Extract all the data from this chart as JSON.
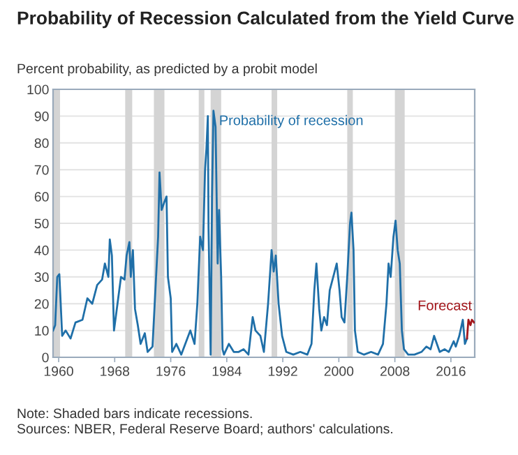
{
  "chart_data": {
    "type": "line",
    "title": "Probability of Recession Calculated from the Yield Curve",
    "subtitle": "Percent probability, as predicted by a probit model",
    "annotations": [
      "Note: Shaded bars indicate recessions.",
      "Sources: NBER, Federal Reserve Board; authors' calculations."
    ],
    "xlim": [
      1959.2,
      2019.4
    ],
    "xticks": [
      1960,
      1968,
      1976,
      1984,
      1992,
      2000,
      2008,
      2016
    ],
    "ylim": [
      0,
      100
    ],
    "yticks": [
      0,
      10,
      20,
      30,
      40,
      50,
      60,
      70,
      80,
      90,
      100
    ],
    "grid": "y",
    "legend": false,
    "bands": [
      {
        "axis": "x",
        "from": 1959.2,
        "to": 1960.2,
        "color": "#d4d4d4"
      },
      {
        "axis": "x",
        "from": 1969.5,
        "to": 1970.5,
        "color": "#d4d4d4"
      },
      {
        "axis": "x",
        "from": 1973.6,
        "to": 1975.1,
        "color": "#d4d4d4"
      },
      {
        "axis": "x",
        "from": 1980.0,
        "to": 1980.8,
        "color": "#d4d4d4"
      },
      {
        "axis": "x",
        "from": 1981.7,
        "to": 1983.2,
        "color": "#d4d4d4"
      },
      {
        "axis": "x",
        "from": 1990.4,
        "to": 1991.2,
        "color": "#d4d4d4"
      },
      {
        "axis": "x",
        "from": 2001.2,
        "to": 2002.0,
        "color": "#d4d4d4"
      },
      {
        "axis": "x",
        "from": 2008.0,
        "to": 2009.4,
        "color": "#d4d4d4"
      }
    ],
    "series": [
      {
        "name": "Probability of recession",
        "color": "#1f6fa8",
        "x": [
          1959.2,
          1959.5,
          1959.8,
          1960.1,
          1960.5,
          1961.0,
          1961.7,
          1962.4,
          1963.4,
          1964.1,
          1964.8,
          1965.5,
          1966.2,
          1966.6,
          1967.1,
          1967.3,
          1967.6,
          1967.9,
          1968.2,
          1968.9,
          1969.4,
          1969.7,
          1970.1,
          1970.3,
          1970.6,
          1970.9,
          1971.3,
          1971.7,
          1972.3,
          1972.7,
          1973.4,
          1974.2,
          1974.4,
          1974.7,
          1975.1,
          1975.4,
          1975.6,
          1976.0,
          1976.2,
          1976.8,
          1977.5,
          1978.8,
          1979.4,
          1979.8,
          1980.2,
          1980.6,
          1980.9,
          1981.1,
          1981.3,
          1981.4,
          1981.7,
          1981.9,
          1982.1,
          1982.4,
          1982.7,
          1982.9,
          1983.2,
          1983.4,
          1983.6,
          1984.3,
          1985.0,
          1985.7,
          1986.4,
          1987.1,
          1987.7,
          1988.1,
          1988.8,
          1989.3,
          1989.9,
          1990.4,
          1990.7,
          1991.0,
          1991.4,
          1991.9,
          1992.5,
          1993.5,
          1994.5,
          1995.5,
          1996.1,
          1996.5,
          1996.8,
          1997.2,
          1997.5,
          1997.9,
          1998.3,
          1998.7,
          1999.2,
          1999.7,
          2000.1,
          2000.4,
          2000.8,
          2001.2,
          2001.6,
          2001.8,
          2002.1,
          2002.3,
          2002.7,
          2003.6,
          2004.6,
          2005.6,
          2006.3,
          2006.8,
          2007.1,
          2007.4,
          2007.8,
          2008.1,
          2008.4,
          2008.7,
          2009.0,
          2009.3,
          2009.9,
          2010.8,
          2011.8,
          2012.5,
          2013.1,
          2013.6,
          2014.0,
          2014.4,
          2015.1,
          2015.7,
          2016.4,
          2016.7,
          2017.2,
          2017.7,
          2018.0,
          2018.3
        ],
        "values": [
          10,
          12,
          30,
          31,
          8,
          10,
          7,
          13,
          14,
          22,
          20,
          27,
          29,
          35,
          30,
          44,
          38,
          10,
          16,
          30,
          29,
          38,
          43,
          30,
          40,
          18,
          12,
          5,
          9,
          2,
          4,
          45,
          69,
          55,
          58,
          60,
          30,
          22,
          2,
          5,
          1,
          10,
          5,
          20,
          45,
          40,
          70,
          78,
          90,
          48,
          1,
          60,
          92,
          86,
          35,
          55,
          30,
          3,
          1,
          5,
          2,
          2,
          3,
          1,
          15,
          10,
          8,
          2,
          20,
          40,
          32,
          38,
          20,
          8,
          2,
          1,
          2,
          1,
          5,
          25,
          35,
          18,
          10,
          15,
          12,
          25,
          30,
          35,
          25,
          15,
          13,
          30,
          50,
          54,
          40,
          10,
          2,
          1,
          2,
          1,
          5,
          20,
          35,
          30,
          45,
          51,
          40,
          35,
          10,
          3,
          1,
          1,
          2,
          4,
          3,
          8,
          5,
          2,
          3,
          2,
          6,
          4,
          8,
          14,
          5,
          7
        ]
      },
      {
        "name": "Forecast",
        "color": "#a3161b",
        "x": [
          2018.3,
          2018.5,
          2018.8,
          2019.0,
          2019.3
        ],
        "values": [
          7,
          14,
          12,
          14,
          13
        ]
      }
    ]
  }
}
